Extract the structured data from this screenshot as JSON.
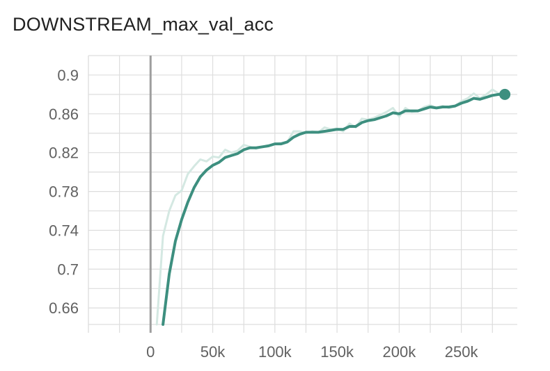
{
  "chart_data": {
    "type": "line",
    "title": "DOWNSTREAM_max_val_acc",
    "xlabel": "",
    "ylabel": "",
    "xlim": [
      -50000,
      295000
    ],
    "ylim": [
      0.643,
      0.92
    ],
    "x_ticks": [
      {
        "value": 0,
        "label": "0"
      },
      {
        "value": 50000,
        "label": "50k"
      },
      {
        "value": 100000,
        "label": "100k"
      },
      {
        "value": 150000,
        "label": "150k"
      },
      {
        "value": 200000,
        "label": "200k"
      },
      {
        "value": 250000,
        "label": "250k"
      }
    ],
    "y_ticks": [
      {
        "value": 0.66,
        "label": "0.66"
      },
      {
        "value": 0.7,
        "label": "0.7"
      },
      {
        "value": 0.74,
        "label": "0.74"
      },
      {
        "value": 0.78,
        "label": "0.78"
      },
      {
        "value": 0.82,
        "label": "0.82"
      },
      {
        "value": 0.86,
        "label": "0.86"
      },
      {
        "value": 0.9,
        "label": "0.9"
      }
    ],
    "grid": true,
    "colors": {
      "series": "#3d8f7f",
      "raw": "#d4e8e2",
      "zero_line": "#9e9e9e",
      "grid": "#dddddd"
    },
    "series": [
      {
        "x": [
          5000,
          10000,
          15000,
          20000,
          25000,
          30000,
          35000,
          40000,
          45000,
          50000,
          55000,
          60000,
          65000,
          70000,
          75000,
          80000,
          85000,
          90000,
          95000,
          100000,
          105000,
          110000,
          115000,
          120000,
          125000,
          130000,
          135000,
          140000,
          145000,
          150000,
          155000,
          160000,
          165000,
          170000,
          175000,
          180000,
          185000,
          190000,
          195000,
          200000,
          205000,
          210000,
          215000,
          220000,
          225000,
          230000,
          235000,
          240000,
          245000,
          250000,
          255000,
          260000,
          265000,
          270000,
          275000,
          280000,
          285000
        ],
        "y": [
          0.643,
          0.734,
          0.76,
          0.776,
          0.781,
          0.798,
          0.806,
          0.813,
          0.811,
          0.816,
          0.815,
          0.823,
          0.82,
          0.822,
          0.828,
          0.826,
          0.824,
          0.826,
          0.827,
          0.829,
          0.83,
          0.831,
          0.842,
          0.842,
          0.84,
          0.842,
          0.841,
          0.846,
          0.844,
          0.845,
          0.842,
          0.85,
          0.846,
          0.855,
          0.854,
          0.856,
          0.859,
          0.862,
          0.866,
          0.857,
          0.866,
          0.862,
          0.863,
          0.867,
          0.869,
          0.866,
          0.868,
          0.866,
          0.868,
          0.873,
          0.876,
          0.881,
          0.876,
          0.88,
          0.885,
          0.881,
          0.88
        ],
        "style": "raw"
      },
      {
        "x": [
          10000,
          15000,
          20000,
          25000,
          30000,
          35000,
          40000,
          45000,
          50000,
          55000,
          60000,
          65000,
          70000,
          75000,
          80000,
          85000,
          90000,
          95000,
          100000,
          105000,
          110000,
          115000,
          120000,
          125000,
          130000,
          135000,
          140000,
          145000,
          150000,
          155000,
          160000,
          165000,
          170000,
          175000,
          180000,
          185000,
          190000,
          195000,
          200000,
          205000,
          210000,
          215000,
          220000,
          225000,
          230000,
          235000,
          240000,
          245000,
          250000,
          255000,
          260000,
          265000,
          270000,
          275000,
          280000,
          285000
        ],
        "y": [
          0.643,
          0.695,
          0.729,
          0.751,
          0.769,
          0.784,
          0.795,
          0.802,
          0.807,
          0.81,
          0.815,
          0.817,
          0.819,
          0.823,
          0.825,
          0.825,
          0.826,
          0.827,
          0.829,
          0.829,
          0.831,
          0.836,
          0.839,
          0.841,
          0.841,
          0.841,
          0.842,
          0.843,
          0.844,
          0.844,
          0.847,
          0.847,
          0.851,
          0.853,
          0.854,
          0.856,
          0.858,
          0.861,
          0.86,
          0.863,
          0.863,
          0.863,
          0.865,
          0.867,
          0.866,
          0.867,
          0.867,
          0.868,
          0.871,
          0.873,
          0.876,
          0.875,
          0.877,
          0.879,
          0.88,
          0.88
        ],
        "style": "smoothed"
      }
    ]
  }
}
